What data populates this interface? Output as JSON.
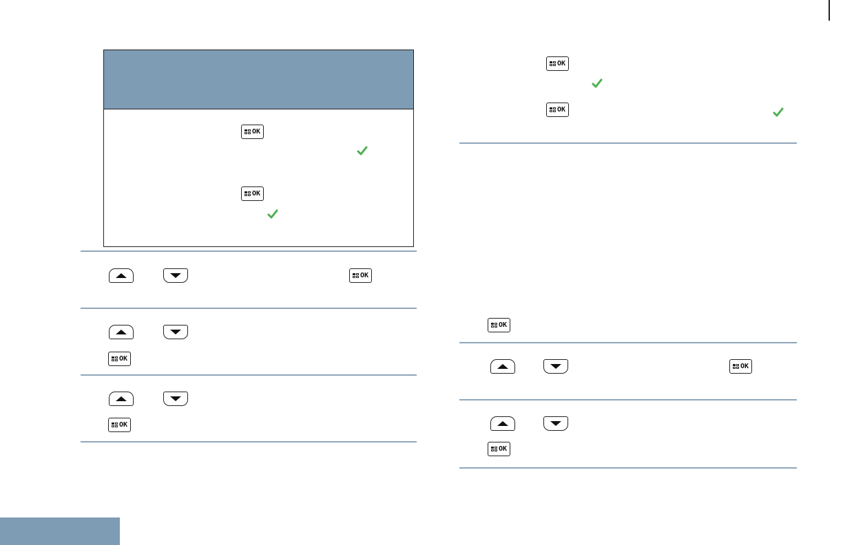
{
  "colors": {
    "header_band": "#7f9cb5",
    "rule": "#8fa6bb",
    "check": "#4caf50"
  },
  "icons": {
    "ok": "menu-ok-key-icon",
    "up": "up-arrow-key-icon",
    "down": "down-arrow-key-icon",
    "check": "green-check-icon"
  },
  "ok_label": "OK"
}
